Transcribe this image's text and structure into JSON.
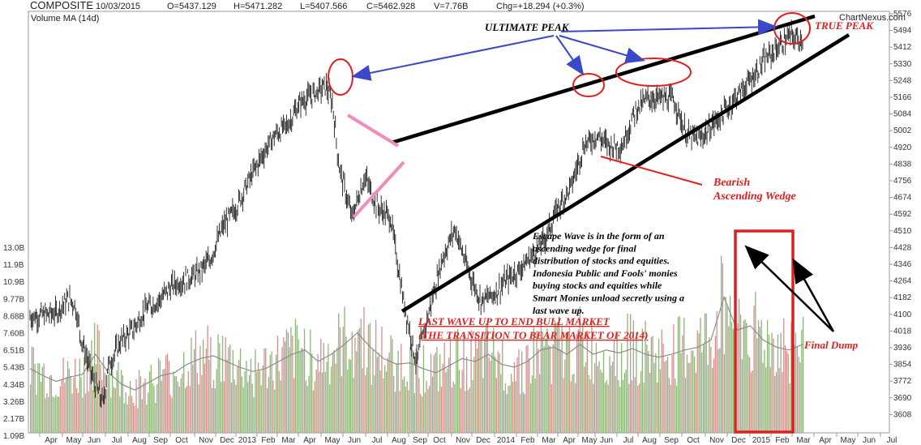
{
  "header": {
    "symbol": "COMPOSITE",
    "date": "10/03/2015",
    "open": "O=5437.129",
    "high": "H=5471.282",
    "low": "L=5407.566",
    "close": "C=5462.928",
    "volume": "V=7.76B",
    "change": "Chg=+18.294 (+0.3%)",
    "volume_label": "Volume MA (14d)",
    "watermark": "ChartNexus.com"
  },
  "chart_data": {
    "type": "line",
    "price_axis": {
      "ticks": [
        "5576",
        "5494",
        "5412",
        "5330",
        "5248",
        "5166",
        "5084",
        "5002",
        "4920",
        "4838",
        "4756",
        "4674",
        "4592",
        "4510",
        "4428",
        "4346",
        "4264",
        "4182",
        "4100",
        "4018",
        "3936",
        "3854",
        "3772",
        "3690",
        "3608"
      ],
      "ylim": [
        3560,
        5600
      ]
    },
    "volume_axis": {
      "ticks": [
        "13.0B",
        "11.9B",
        "10.9B",
        "9.77B",
        "8.68B",
        "7.60B",
        "6.51B",
        "5.43B",
        "4.34B",
        "3.26B",
        "2.17B",
        "1.09B"
      ]
    },
    "x_ticks": [
      "Apr",
      "May",
      "Jun",
      "Jul",
      "Aug",
      "Sep",
      "Oct",
      "Nov",
      "Dec",
      "2013",
      "Feb",
      "Mar",
      "Apr",
      "May",
      "Jun",
      "Jul",
      "Aug",
      "Sep",
      "Oct",
      "Nov",
      "Dec",
      "2014",
      "Feb",
      "Mar",
      "Apr",
      "May",
      "Jun",
      "Jul",
      "Aug",
      "Sep",
      "Oct",
      "Nov",
      "Dec",
      "2015",
      "Feb",
      "Mar",
      "Apr",
      "May",
      "Jun",
      "Jul"
    ],
    "price_series": {
      "name": "COMPOSITE",
      "anchors": [
        [
          0,
          4120
        ],
        [
          2,
          4140
        ],
        [
          3,
          4210
        ],
        [
          3.5,
          4180
        ],
        [
          4,
          4010
        ],
        [
          5,
          3800
        ],
        [
          5.7,
          3700
        ],
        [
          6,
          3870
        ],
        [
          7,
          4000
        ],
        [
          8,
          4060
        ],
        [
          9,
          4160
        ],
        [
          10,
          4200
        ],
        [
          11,
          4270
        ],
        [
          12,
          4300
        ],
        [
          13,
          4330
        ],
        [
          14,
          4400
        ],
        [
          15,
          4560
        ],
        [
          16,
          4650
        ],
        [
          17,
          4780
        ],
        [
          18,
          4900
        ],
        [
          19,
          5000
        ],
        [
          20,
          5050
        ],
        [
          21,
          5160
        ],
        [
          22,
          5200
        ],
        [
          23,
          5240
        ],
        [
          23.5,
          5150
        ],
        [
          24,
          4850
        ],
        [
          25,
          4600
        ],
        [
          26,
          4800
        ],
        [
          27,
          4650
        ],
        [
          28,
          4600
        ],
        [
          29,
          4200
        ],
        [
          30,
          3900
        ],
        [
          31,
          4150
        ],
        [
          32,
          4400
        ],
        [
          33,
          4550
        ],
        [
          34,
          4350
        ],
        [
          35,
          4200
        ],
        [
          36,
          4230
        ],
        [
          37,
          4300
        ],
        [
          38,
          4350
        ],
        [
          39,
          4420
        ],
        [
          40,
          4500
        ],
        [
          41,
          4650
        ],
        [
          42,
          4750
        ],
        [
          43,
          4950
        ],
        [
          44,
          5000
        ],
        [
          45,
          4950
        ],
        [
          46,
          4950
        ],
        [
          47,
          5120
        ],
        [
          48,
          5180
        ],
        [
          49,
          5180
        ],
        [
          50,
          5170
        ],
        [
          51,
          5000
        ],
        [
          52,
          4980
        ],
        [
          53,
          5050
        ],
        [
          54,
          5120
        ],
        [
          55,
          5200
        ],
        [
          56,
          5270
        ],
        [
          57,
          5360
        ],
        [
          58,
          5420
        ],
        [
          59,
          5480
        ],
        [
          60,
          5463
        ]
      ]
    },
    "volume_ma": [
      4.5,
      4.0,
      3.6,
      3.9,
      4.1,
      5.5,
      4.2,
      3.4,
      3.0,
      3.5,
      4.0,
      4.2,
      4.8,
      5.2,
      5.4,
      5.0,
      4.6,
      4.3,
      4.5,
      5.0,
      5.5,
      5.8,
      5.0,
      5.5,
      6.2,
      7.0,
      6.0,
      5.2,
      4.8,
      4.9,
      4.5,
      4.2,
      4.7,
      5.2,
      5.0,
      5.5,
      4.8,
      4.6,
      5.0,
      5.8,
      6.0,
      5.5,
      6.2,
      5.5,
      5.8,
      5.6,
      5.9,
      5.5,
      5.3,
      5.5,
      5.8,
      6.0,
      6.5,
      9.5,
      7.2,
      7.5,
      6.5,
      6.0,
      5.8,
      6.2
    ],
    "title": "COMPOSITE",
    "xlabel": "",
    "ylabel": "",
    "grid": false
  },
  "annotations": {
    "ultimate_peak": "ULTIMATE PEAK",
    "true_peak": "TRUE PEAK",
    "bearish_1": "Bearish",
    "bearish_2": "Ascending Wedge",
    "escape_lines": [
      "Escape Wave is in the form of an",
      "ascending wedge for final",
      "distribution of stocks and equities.",
      "Indonesia Public and Fools' monies",
      "buying stocks and equities while",
      "Smart Monies unload secretly using a",
      "last wave up."
    ],
    "last_wave_1": "LAST WAVE UP TO END BULL MARKET",
    "last_wave_2": "(THE TRANSITION TO BEAR MARKET OF 2014)",
    "final_dump": "Final Dump"
  },
  "colors": {
    "price": "#1a1a1a",
    "volume_up": "#8fb57a",
    "volume_down": "#d49090",
    "volume_ma": "#8c8c8c",
    "wedge": "#000000",
    "blue_arrow": "#3b48c9",
    "red_mark": "#e02020",
    "pink_mark": "#f08cbc"
  }
}
